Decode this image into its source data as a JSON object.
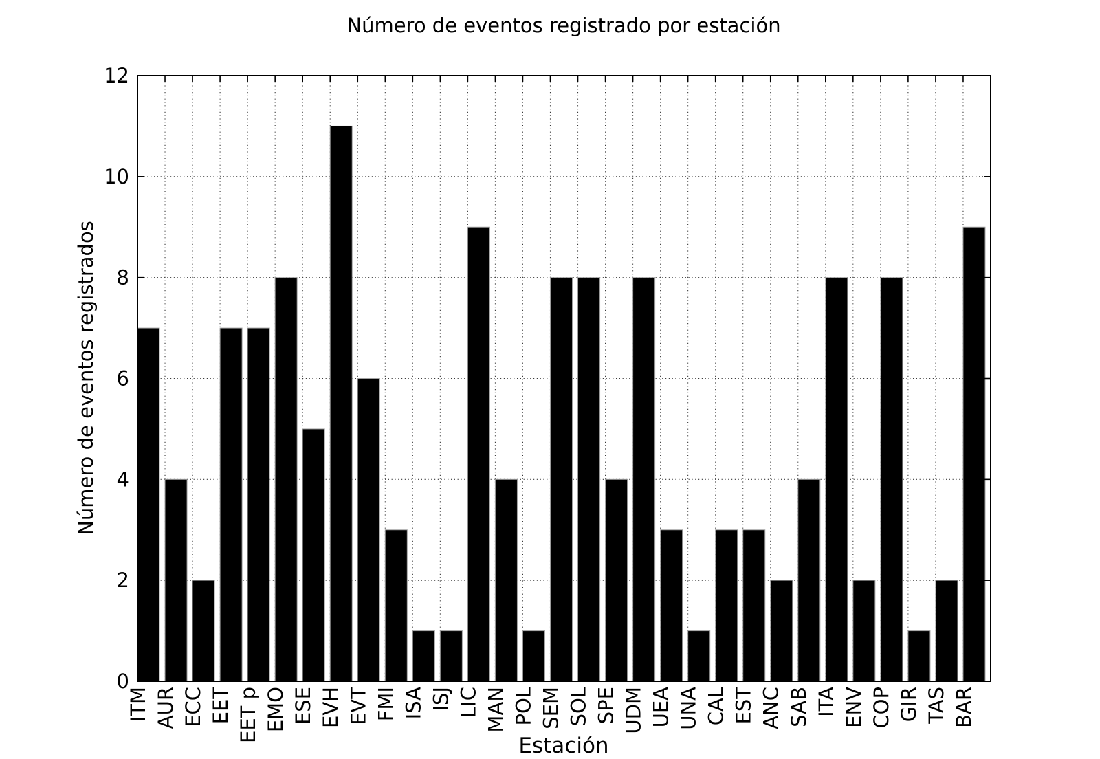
{
  "chart_data": {
    "type": "bar",
    "title": "Número de eventos registrado por estación",
    "xlabel": "Estación",
    "ylabel": "Número de eventos registrados",
    "categories": [
      "ITM",
      "AUR",
      "ECC",
      "EET",
      "EET p",
      "EMO",
      "ESE",
      "EVH",
      "EVT",
      "FMI",
      "ISA",
      "ISJ",
      "LIC",
      "MAN",
      "POL",
      "SEM",
      "SOL",
      "SPE",
      "UDM",
      "UEA",
      "UNA",
      "CAL",
      "EST",
      "ANC",
      "SAB",
      "ITA",
      "ENV",
      "COP",
      "GIR",
      "TAS",
      "BAR"
    ],
    "values": [
      7,
      4,
      2,
      7,
      7,
      8,
      5,
      11,
      6,
      3,
      1,
      1,
      9,
      4,
      1,
      8,
      8,
      4,
      8,
      3,
      1,
      3,
      3,
      2,
      4,
      8,
      2,
      8,
      1,
      2,
      9
    ],
    "ylim": [
      0,
      12
    ],
    "yticks": [
      0,
      2,
      4,
      6,
      8,
      10,
      12
    ],
    "grid": "dotted",
    "legend": "none",
    "bar_color": "#000000",
    "bar_edge_color": "#a0a0a0",
    "grid_color": "#3a3a3a",
    "axis_color": "#000000",
    "background_color": "#ffffff"
  }
}
